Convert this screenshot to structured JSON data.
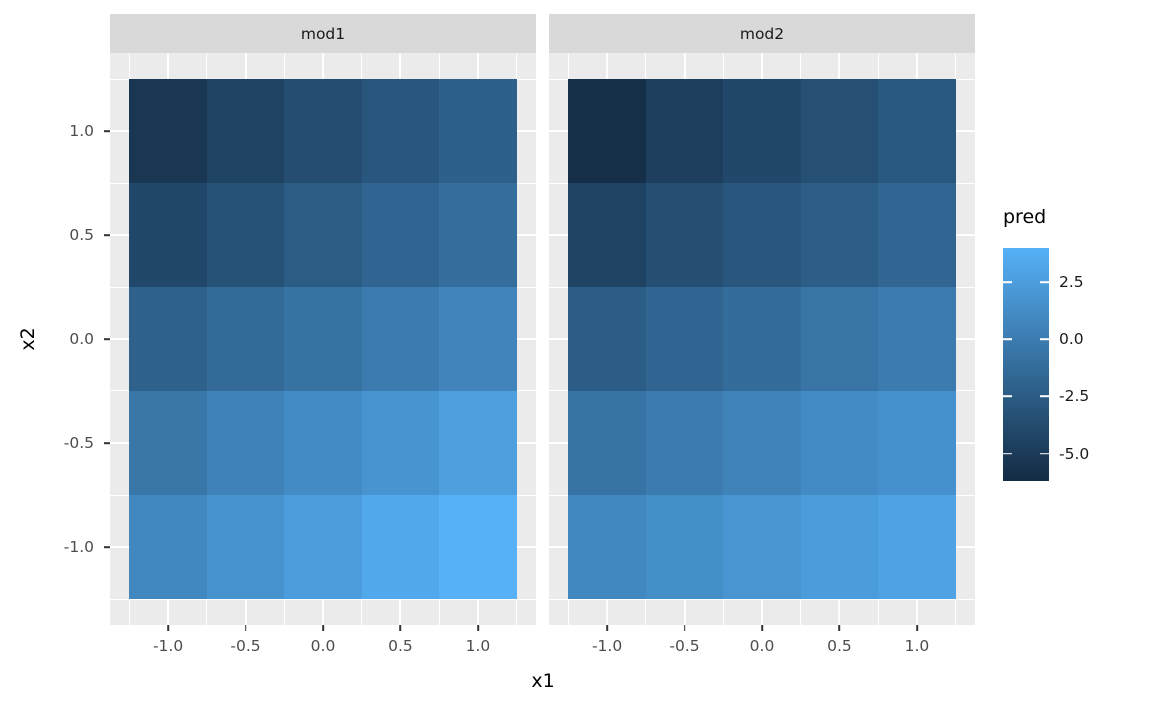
{
  "figure": {
    "background": "#FFFFFF",
    "panel_background": "#EBEBEB",
    "strip_background": "#D9D9D9",
    "grid_color": "#FFFFFF",
    "tick_color": "#333333",
    "axis_text_color": "#4D4D4D"
  },
  "axes": {
    "x_title": "x1",
    "y_title": "x2",
    "x_tick_labels": [
      "-1.0",
      "-0.5",
      "0.0",
      "0.5",
      "1.0"
    ],
    "x_tick_values": [
      -1,
      -0.5,
      0,
      0.5,
      1
    ],
    "y_tick_labels": [
      "1.0",
      "0.5",
      "0.0",
      "-0.5",
      "-1.0"
    ],
    "y_tick_values": [
      1,
      0.5,
      0,
      -0.5,
      -1
    ],
    "x_minor_values": [
      -1.25,
      -0.75,
      -0.25,
      0.25,
      0.75,
      1.25
    ],
    "y_minor_values": [
      -1.25,
      -0.75,
      -0.25,
      0.25,
      0.75,
      1.25
    ],
    "x_range": [
      -1.25,
      1.25
    ],
    "y_range": [
      -1.25,
      1.25
    ],
    "expansion": 0.05
  },
  "facets": [
    {
      "label": "mod1"
    },
    {
      "label": "mod2"
    }
  ],
  "legend": {
    "title": "pred",
    "tick_labels": [
      "2.5",
      "0.0",
      "-2.5",
      "-5.0"
    ],
    "tick_values": [
      2.5,
      0,
      -2.5,
      -5
    ]
  },
  "chart_data": {
    "type": "heatmap",
    "xlabel": "x1",
    "ylabel": "x2",
    "fill_label": "pred",
    "facet_labels": [
      "mod1",
      "mod2"
    ],
    "x": [
      -1,
      -0.5,
      0,
      0.5,
      1
    ],
    "y": [
      1,
      0.5,
      0,
      -0.5,
      -1
    ],
    "fill_scale": {
      "low": "#132B43",
      "high": "#56B1F7",
      "limits": [
        -6.2,
        4.0
      ]
    },
    "legend_ticks": [
      2.5,
      0.0,
      -2.5,
      -5.0
    ],
    "facets": [
      {
        "name": "mod1",
        "values": [
          [
            -5.3,
            -4.4,
            -3.6,
            -2.9,
            -2.2
          ],
          [
            -4.0,
            -3.2,
            -2.5,
            -1.8,
            -1.1
          ],
          [
            -2.1,
            -1.4,
            -0.8,
            -0.1,
            0.6
          ],
          [
            -0.4,
            0.4,
            1.1,
            1.8,
            2.6
          ],
          [
            0.9,
            1.7,
            2.5,
            3.3,
            4.0
          ]
        ]
      },
      {
        "name": "mod2",
        "values": [
          [
            -5.9,
            -4.7,
            -4.0,
            -3.4,
            -2.8
          ],
          [
            -4.4,
            -3.5,
            -2.9,
            -2.3,
            -1.7
          ],
          [
            -2.4,
            -1.8,
            -1.2,
            -0.6,
            -0.1
          ],
          [
            -0.7,
            -0.1,
            0.5,
            1.1,
            1.6
          ],
          [
            0.9,
            1.4,
            1.9,
            2.4,
            2.9
          ]
        ]
      }
    ]
  }
}
